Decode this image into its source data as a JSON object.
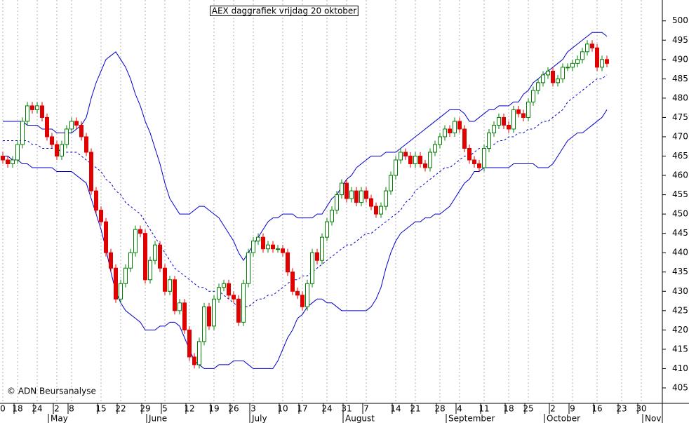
{
  "chart_data": {
    "type": "candlestick",
    "title": "AEX daggrafiek vrijdag 20 oktober",
    "copyright": "© ADN Beursanalyse",
    "ylim": [
      401,
      505.4
    ],
    "yticks": [
      405,
      410,
      415,
      420,
      425,
      430,
      435,
      440,
      445,
      450,
      455,
      460,
      465,
      470,
      475,
      480,
      485,
      490,
      495,
      500
    ],
    "grid": true,
    "up_color": "#008000",
    "down_color": "#e00000",
    "band_color": "#0000cc",
    "categories": [
      "0",
      null,
      null,
      "18",
      null,
      null,
      null,
      "24",
      null,
      null,
      null,
      "2",
      null,
      null,
      "8",
      null,
      null,
      null,
      null,
      null,
      "15",
      null,
      null,
      null,
      "22",
      null,
      null,
      null,
      null,
      "29",
      null,
      null,
      null,
      "5",
      null,
      null,
      null,
      null,
      "12",
      null,
      null,
      null,
      null,
      "19",
      null,
      null,
      null,
      "26",
      null,
      null,
      null,
      "3",
      null,
      null,
      null,
      null,
      null,
      "10",
      null,
      null,
      null,
      "17",
      null,
      null,
      null,
      null,
      "24",
      null,
      null,
      null,
      "31",
      null,
      null,
      null,
      "7",
      null,
      null,
      null,
      null,
      null,
      "14",
      null,
      null,
      null,
      "21",
      null,
      null,
      null,
      null,
      "28",
      null,
      null,
      null,
      "4",
      null,
      null,
      null,
      null,
      "11",
      null,
      null,
      null,
      null,
      "18",
      null,
      null,
      null,
      "25",
      null,
      null,
      null,
      null,
      "2",
      null,
      null,
      null,
      "9",
      null,
      null,
      null,
      null,
      "16",
      null,
      null,
      null,
      null,
      "23",
      null,
      null,
      null,
      "30",
      null,
      null,
      null,
      null
    ],
    "months": [
      null,
      null,
      null,
      null,
      null,
      null,
      null,
      null,
      null,
      null,
      "May",
      null,
      null,
      null,
      null,
      null,
      null,
      null,
      null,
      null,
      null,
      null,
      null,
      null,
      null,
      null,
      null,
      null,
      null,
      null,
      "June",
      null,
      null,
      null,
      null,
      null,
      null,
      null,
      null,
      null,
      null,
      null,
      null,
      null,
      null,
      null,
      null,
      null,
      null,
      null,
      null,
      "July",
      null,
      null,
      null,
      null,
      null,
      null,
      null,
      null,
      null,
      null,
      null,
      null,
      null,
      null,
      null,
      null,
      null,
      null,
      "August",
      null,
      null,
      null,
      null,
      null,
      null,
      null,
      null,
      null,
      null,
      null,
      null,
      null,
      null,
      null,
      null,
      null,
      null,
      null,
      null,
      "September",
      null,
      null,
      null,
      null,
      null,
      null,
      null,
      null,
      null,
      null,
      null,
      null,
      null,
      null,
      null,
      null,
      null,
      null,
      null,
      "October",
      null,
      null,
      null,
      null,
      null,
      null,
      null,
      null,
      null,
      null,
      null,
      null,
      null,
      null,
      null,
      null,
      null,
      null,
      null,
      "Nov",
      null,
      null,
      null
    ],
    "open": [
      465,
      464,
      463,
      464,
      468,
      474,
      478,
      477,
      478,
      475,
      470,
      468,
      465,
      468,
      472,
      474,
      473,
      470,
      466,
      456,
      451,
      448,
      440,
      436,
      428,
      432,
      436,
      440,
      446,
      445,
      433,
      438,
      442,
      436,
      430,
      433,
      425,
      427,
      420,
      413,
      411,
      417,
      426,
      421,
      428,
      431,
      432,
      429,
      428,
      422,
      432,
      440,
      443,
      444,
      441,
      442,
      441,
      441,
      440,
      435,
      430,
      429,
      426,
      432,
      440,
      438,
      444,
      448,
      451,
      455,
      458,
      454,
      456,
      453,
      456,
      454,
      452,
      450,
      452,
      456,
      460,
      464,
      466,
      465,
      463,
      465,
      463,
      462,
      466,
      468,
      470,
      472,
      471,
      474,
      472,
      467,
      464,
      463,
      462,
      467,
      471,
      473,
      475,
      473,
      472,
      477,
      476,
      475,
      479,
      482,
      484,
      486,
      487,
      484,
      485,
      488,
      488,
      489,
      490,
      492,
      494,
      493,
      488,
      490,
      null,
      null,
      null,
      null,
      null,
      null,
      null,
      null,
      null,
      null,
      null
    ],
    "high": [
      466,
      465,
      465,
      469,
      475,
      479,
      479,
      479,
      479,
      476,
      471,
      469,
      469,
      473,
      475,
      475,
      474,
      471,
      467,
      457,
      452,
      449,
      441,
      437,
      433,
      437,
      441,
      447,
      447,
      446,
      439,
      443,
      443,
      437,
      434,
      434,
      428,
      428,
      421,
      414,
      418,
      427,
      427,
      429,
      432,
      433,
      433,
      430,
      429,
      433,
      441,
      444,
      445,
      445,
      443,
      443,
      442,
      442,
      441,
      436,
      431,
      430,
      433,
      441,
      441,
      445,
      449,
      452,
      456,
      459,
      459,
      457,
      457,
      457,
      457,
      455,
      453,
      453,
      457,
      461,
      465,
      467,
      467,
      466,
      466,
      466,
      464,
      467,
      469,
      471,
      473,
      473,
      475,
      475,
      473,
      468,
      465,
      464,
      468,
      472,
      474,
      476,
      476,
      474,
      478,
      478,
      477,
      480,
      483,
      485,
      487,
      488,
      488,
      486,
      489,
      489,
      490,
      491,
      493,
      495,
      495,
      494,
      491,
      491,
      null,
      null,
      null,
      null,
      null,
      null,
      null,
      null,
      null,
      null,
      null
    ],
    "low": [
      463,
      462,
      462,
      463,
      467,
      473,
      476,
      476,
      474,
      469,
      467,
      464,
      464,
      467,
      471,
      472,
      469,
      465,
      455,
      450,
      447,
      439,
      435,
      427,
      427,
      431,
      435,
      439,
      444,
      432,
      432,
      437,
      435,
      429,
      429,
      424,
      424,
      419,
      412,
      410,
      410,
      416,
      420,
      420,
      427,
      430,
      428,
      427,
      421,
      421,
      431,
      439,
      442,
      440,
      440,
      440,
      440,
      439,
      434,
      429,
      428,
      425,
      425,
      431,
      437,
      437,
      443,
      447,
      450,
      454,
      453,
      453,
      452,
      452,
      453,
      451,
      449,
      449,
      451,
      455,
      459,
      463,
      464,
      462,
      462,
      462,
      461,
      461,
      465,
      467,
      469,
      470,
      470,
      471,
      466,
      463,
      462,
      461,
      461,
      466,
      470,
      472,
      472,
      471,
      471,
      475,
      474,
      474,
      478,
      481,
      483,
      485,
      483,
      483,
      484,
      487,
      487,
      488,
      489,
      491,
      492,
      487,
      487,
      488,
      null,
      null,
      null,
      null,
      null,
      null,
      null,
      null,
      null,
      null,
      null
    ],
    "close": [
      464,
      463,
      464,
      468,
      474,
      478,
      477,
      478,
      475,
      470,
      468,
      465,
      468,
      472,
      474,
      473,
      470,
      466,
      456,
      451,
      448,
      440,
      436,
      428,
      432,
      436,
      440,
      446,
      445,
      433,
      438,
      442,
      436,
      430,
      433,
      425,
      427,
      420,
      413,
      411,
      417,
      426,
      421,
      428,
      431,
      432,
      429,
      428,
      422,
      432,
      440,
      443,
      444,
      441,
      442,
      441,
      441,
      440,
      435,
      430,
      429,
      426,
      432,
      440,
      438,
      444,
      448,
      451,
      455,
      458,
      454,
      456,
      453,
      456,
      454,
      452,
      450,
      452,
      456,
      460,
      464,
      466,
      465,
      463,
      465,
      463,
      462,
      466,
      468,
      470,
      472,
      471,
      474,
      472,
      467,
      464,
      463,
      462,
      467,
      471,
      473,
      475,
      473,
      472,
      477,
      476,
      475,
      479,
      482,
      484,
      486,
      487,
      484,
      485,
      488,
      488,
      489,
      490,
      492,
      494,
      493,
      488,
      490,
      489,
      null,
      null,
      null,
      null,
      null,
      null,
      null,
      null,
      null,
      null,
      null
    ],
    "upper": [
      474,
      474,
      474,
      474,
      474,
      473,
      473,
      473,
      472,
      472,
      472,
      471,
      471,
      471,
      471,
      472,
      473,
      475,
      480,
      484,
      487,
      490,
      491,
      492,
      490,
      488,
      485,
      481,
      478,
      474,
      471,
      467,
      463,
      458,
      454,
      452,
      450,
      450,
      450,
      451,
      452,
      452,
      451,
      450,
      449,
      447,
      445,
      443,
      440,
      438,
      440,
      442,
      444,
      446,
      448,
      449,
      449,
      450,
      450,
      450,
      449,
      449,
      449,
      449,
      450,
      450,
      452,
      454,
      455,
      457,
      459,
      460,
      462,
      463,
      464,
      465,
      465,
      465,
      466,
      466,
      466,
      467,
      468,
      469,
      470,
      471,
      472,
      473,
      474,
      475,
      476,
      477,
      477,
      477,
      476,
      474,
      474,
      475,
      476,
      477,
      477,
      478,
      478,
      478,
      479,
      479,
      481,
      482,
      484,
      485,
      486,
      487,
      488,
      489,
      490,
      492,
      493,
      494,
      495,
      496,
      497,
      497,
      497,
      496,
      null,
      null,
      null,
      null,
      null,
      null,
      null,
      null,
      null,
      null,
      null
    ],
    "middle": [
      469,
      469,
      469,
      469,
      469,
      469,
      468,
      468,
      467,
      467,
      467,
      467,
      466,
      466,
      466,
      466,
      465,
      464,
      463,
      462,
      461,
      459,
      458,
      456,
      455,
      453,
      452,
      451,
      450,
      448,
      446,
      444,
      442,
      440,
      438,
      436,
      435,
      434,
      433,
      432,
      431,
      431,
      430,
      430,
      430,
      429,
      428,
      427,
      426,
      426,
      426,
      427,
      428,
      428,
      429,
      429,
      430,
      431,
      432,
      433,
      433,
      434,
      434,
      435,
      436,
      437,
      438,
      439,
      440,
      441,
      442,
      442,
      443,
      444,
      445,
      445,
      446,
      447,
      448,
      449,
      450,
      451,
      453,
      454,
      456,
      457,
      458,
      459,
      460,
      461,
      462,
      462,
      463,
      464,
      465,
      465,
      466,
      467,
      467,
      468,
      468,
      469,
      469,
      470,
      470,
      471,
      471,
      472,
      472,
      473,
      474,
      474,
      475,
      476,
      477,
      479,
      480,
      481,
      482,
      483,
      484,
      485,
      485,
      486,
      null,
      null,
      null,
      null,
      null,
      null,
      null,
      null,
      null,
      null,
      null
    ],
    "lower": [
      465,
      465,
      464,
      464,
      463,
      463,
      462,
      462,
      462,
      462,
      462,
      461,
      461,
      461,
      461,
      460,
      459,
      458,
      454,
      450,
      446,
      441,
      435,
      430,
      427,
      425,
      424,
      423,
      422,
      420,
      420,
      420,
      421,
      421,
      422,
      422,
      421,
      418,
      415,
      412,
      411,
      410,
      410,
      410,
      411,
      411,
      411,
      412,
      412,
      412,
      411,
      410,
      410,
      410,
      410,
      410,
      412,
      415,
      418,
      420,
      423,
      424,
      426,
      427,
      428,
      428,
      427,
      427,
      426,
      425,
      425,
      425,
      425,
      425,
      425,
      426,
      428,
      431,
      436,
      440,
      443,
      445,
      446,
      447,
      448,
      448,
      449,
      449,
      450,
      450,
      451,
      452,
      454,
      456,
      458,
      459,
      461,
      461,
      462,
      462,
      462,
      462,
      462,
      462,
      463,
      463,
      463,
      463,
      463,
      462,
      462,
      462,
      463,
      465,
      467,
      469,
      470,
      471,
      471,
      472,
      473,
      474,
      475,
      477,
      null,
      null,
      null,
      null,
      null,
      null,
      null,
      null,
      null,
      null,
      null
    ]
  }
}
